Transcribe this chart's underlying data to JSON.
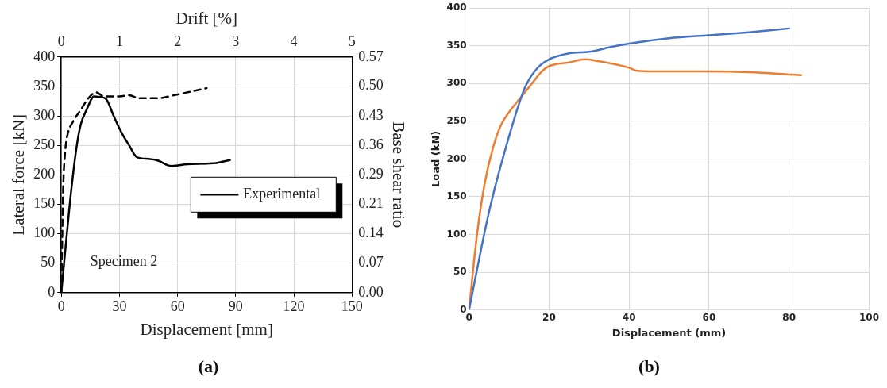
{
  "chart_data": [
    {
      "type": "line",
      "title": "(a)",
      "xlabel": "Displacement [mm]",
      "ylabel": "Lateral force [kN]",
      "y2label": "Base shear ratio",
      "x2label": "Drift [%]",
      "annotations": [
        "Specimen 2"
      ],
      "xlim": [
        0,
        150
      ],
      "xticks": [
        0,
        30,
        60,
        90,
        120,
        150
      ],
      "x2lim": [
        0,
        5
      ],
      "x2ticks": [
        0,
        1,
        2,
        3,
        4,
        5
      ],
      "ylim": [
        0,
        400
      ],
      "yticks": [
        0,
        50,
        100,
        150,
        200,
        250,
        300,
        350,
        400
      ],
      "y2lim": [
        0,
        0.571
      ],
      "y2ticks": [
        {
          "value": 0,
          "label": "0.00"
        },
        {
          "value": 0.0714,
          "label": "0.07"
        },
        {
          "value": 0.1429,
          "label": "0.14"
        },
        {
          "value": 0.2143,
          "label": "0.21"
        },
        {
          "value": 0.2857,
          "label": "0.29"
        },
        {
          "value": 0.3571,
          "label": "0.36"
        },
        {
          "value": 0.4286,
          "label": "0.43"
        },
        {
          "value": 0.5,
          "label": "0.50"
        },
        {
          "value": 0.571,
          "label": "0.57"
        }
      ],
      "grid": true,
      "legend": "right",
      "marker": "none",
      "series": [
        {
          "color": "#000000",
          "line_style": "dashed",
          "x": [
            0,
            0.5,
            1,
            2,
            3,
            6,
            10,
            14,
            18,
            22,
            30,
            35,
            40,
            45,
            50,
            58,
            65,
            75
          ],
          "values": [
            0,
            100,
            180,
            240,
            265,
            290,
            310,
            330,
            340,
            333,
            333,
            335,
            330,
            330,
            330,
            335,
            340,
            347
          ]
        },
        {
          "name": "Experimental",
          "color": "#000000",
          "line_style": "solid",
          "x": [
            0,
            2,
            5,
            8,
            10,
            13,
            17,
            20,
            23,
            27,
            31,
            35,
            39,
            45,
            50,
            55,
            57,
            65,
            75,
            80,
            87
          ],
          "values": [
            0,
            70,
            170,
            250,
            285,
            310,
            333,
            332,
            329,
            300,
            272,
            250,
            230,
            227,
            224,
            216,
            215,
            218,
            219,
            220,
            225
          ]
        }
      ]
    },
    {
      "type": "line",
      "title": "(b)",
      "xlabel": "Displacement (mm)",
      "ylabel": "Load (kN)",
      "xlim": [
        0,
        100
      ],
      "xticks": [
        0,
        20,
        40,
        60,
        80,
        100
      ],
      "ylim": [
        0,
        400
      ],
      "yticks": [
        0,
        50,
        100,
        150,
        200,
        250,
        300,
        350,
        400
      ],
      "grid": true,
      "marker": "none",
      "series": [
        {
          "color": "#4472c4",
          "x": [
            0,
            5,
            10,
            14,
            17,
            20,
            25,
            30,
            32,
            35,
            40,
            50,
            60,
            70,
            80
          ],
          "values": [
            0,
            130,
            230,
            295,
            320,
            332,
            340,
            342,
            344,
            348,
            353,
            360,
            364,
            368,
            373
          ]
        },
        {
          "color": "#ed7d31",
          "x": [
            0,
            2,
            4,
            6,
            8,
            10,
            13,
            16,
            18,
            20,
            25,
            29,
            32,
            36,
            40,
            42,
            50,
            60,
            70,
            80,
            83
          ],
          "values": [
            0,
            100,
            170,
            215,
            245,
            262,
            282,
            302,
            315,
            323,
            328,
            332,
            330,
            326,
            321,
            317,
            316,
            316,
            315,
            312,
            311
          ]
        }
      ]
    }
  ]
}
